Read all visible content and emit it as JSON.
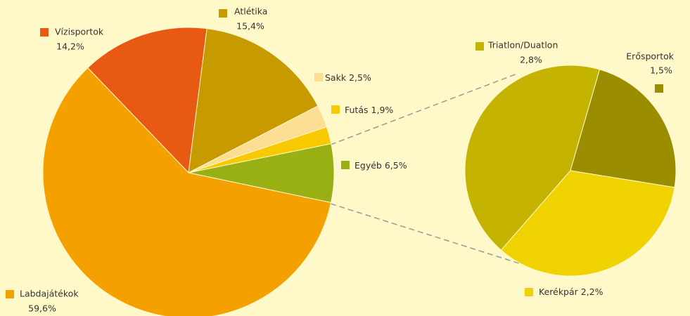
{
  "chart_data": [
    {
      "type": "pie",
      "categories": [
        "Vízisportok",
        "Atlétika",
        "Sakk",
        "Futás",
        "Egyéb",
        "Labdajátékok"
      ],
      "values": [
        14.2,
        15.4,
        2.5,
        1.9,
        6.5,
        59.6
      ],
      "value_labels": [
        "14,2%",
        "15,4%",
        "2,5%",
        "1,9%",
        "6,5%",
        "59,6%"
      ],
      "colors": [
        "#e85a14",
        "#c79a00",
        "#fddc94",
        "#f8c800",
        "#99b015",
        "#f4a100"
      ]
    },
    {
      "type": "pie",
      "categories": [
        "Triatlon/Duatlon",
        "Erősportok",
        "Kerékpár"
      ],
      "values": [
        2.8,
        1.5,
        2.2
      ],
      "value_labels": [
        "2,8%",
        "1,5%",
        "2,2%"
      ],
      "colors": [
        "#c4b300",
        "#9a8e00",
        "#f0d200"
      ]
    }
  ]
}
